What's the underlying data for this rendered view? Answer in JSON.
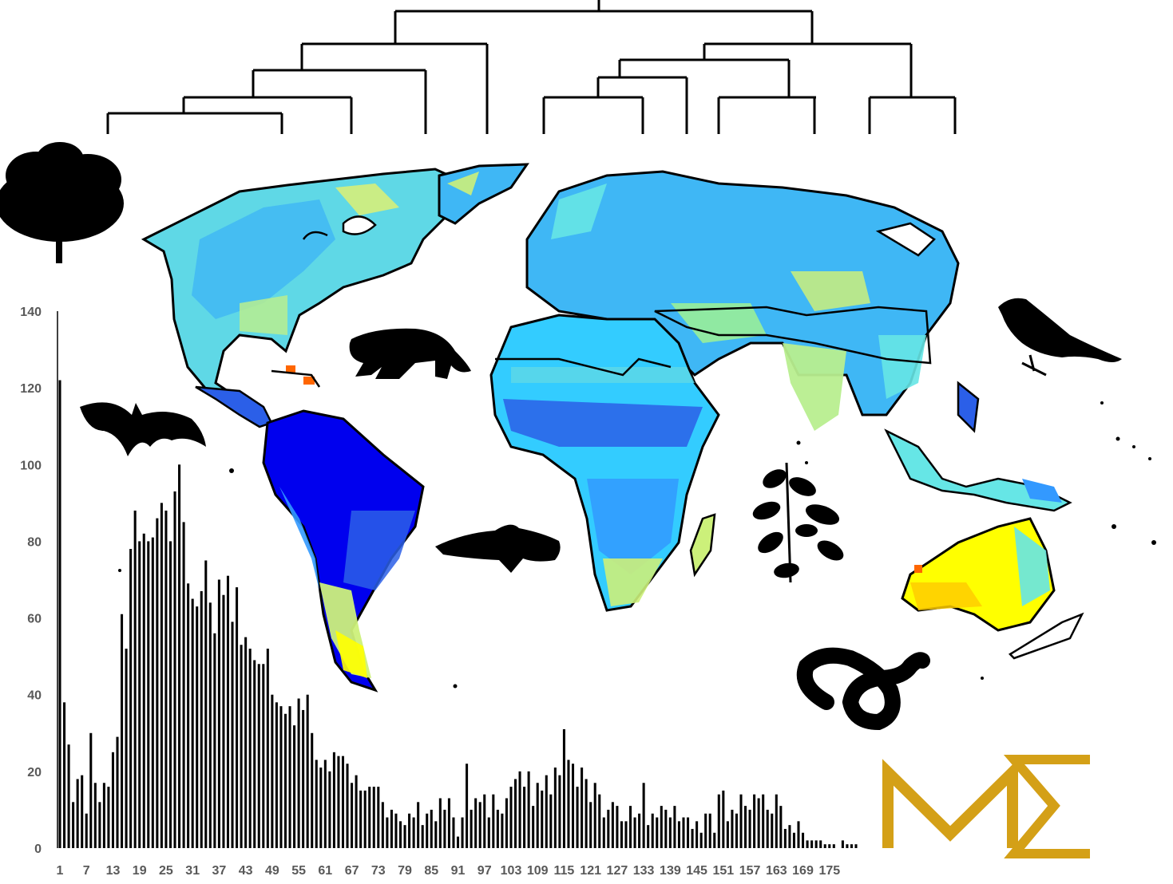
{
  "chart_data": {
    "type": "bar",
    "title": "",
    "xlabel": "",
    "ylabel": "",
    "ylim": [
      0,
      140
    ],
    "yticks": [
      0,
      20,
      40,
      60,
      80,
      100,
      120,
      140
    ],
    "xtick_labels": [
      "1",
      "7",
      "13",
      "19",
      "25",
      "31",
      "37",
      "43",
      "49",
      "55",
      "61",
      "67",
      "73",
      "79",
      "85",
      "91",
      "97",
      "103",
      "109",
      "115",
      "121",
      "127",
      "133",
      "139",
      "145",
      "151",
      "157",
      "163",
      "169",
      "175"
    ],
    "bar_color": "#000000",
    "grid": false,
    "values": [
      122,
      38,
      27,
      12,
      18,
      19,
      9,
      30,
      17,
      12,
      17,
      16,
      25,
      29,
      61,
      52,
      78,
      88,
      80,
      82,
      80,
      81,
      86,
      90,
      88,
      80,
      93,
      100,
      85,
      69,
      65,
      63,
      67,
      75,
      64,
      56,
      70,
      66,
      71,
      59,
      68,
      53,
      55,
      52,
      49,
      48,
      48,
      52,
      40,
      38,
      37,
      35,
      37,
      32,
      39,
      36,
      40,
      30,
      23,
      21,
      23,
      20,
      25,
      24,
      24,
      22,
      17,
      19,
      15,
      15,
      16,
      16,
      16,
      12,
      8,
      10,
      9,
      7,
      6,
      9,
      8,
      12,
      6,
      9,
      10,
      7,
      13,
      10,
      13,
      8,
      3,
      8,
      22,
      10,
      13,
      12,
      14,
      8,
      14,
      10,
      9,
      13,
      16,
      18,
      20,
      16,
      20,
      11,
      17,
      15,
      19,
      14,
      21,
      19,
      31,
      23,
      22,
      16,
      21,
      18,
      12,
      17,
      14,
      8,
      10,
      12,
      11,
      7,
      7,
      11,
      8,
      9,
      17,
      6,
      9,
      8,
      11,
      10,
      8,
      11,
      7,
      8,
      8,
      5,
      7,
      4,
      9,
      9,
      4,
      14,
      15,
      7,
      10,
      9,
      14,
      11,
      10,
      14,
      13,
      14,
      10,
      9,
      14,
      11,
      5,
      6,
      4,
      7,
      4,
      2,
      2,
      2,
      2,
      1,
      1,
      1,
      0,
      2,
      1,
      1,
      1
    ]
  },
  "figure": {
    "logo_text": "MΣ",
    "logo_color": "#D4A017",
    "map_palette": [
      "#0000ee",
      "#2b5fe8",
      "#3399ff",
      "#33ccff",
      "#66e6e6",
      "#99ee99",
      "#ccf07a",
      "#ffff00",
      "#ffcc00",
      "#ff6600"
    ],
    "silhouettes": [
      "tree-icon",
      "bat-icon",
      "jaguar-icon",
      "fish-icon",
      "plant-icon",
      "bird-icon",
      "snake-icon"
    ],
    "dendrogram": "phylogenetic-tree"
  }
}
